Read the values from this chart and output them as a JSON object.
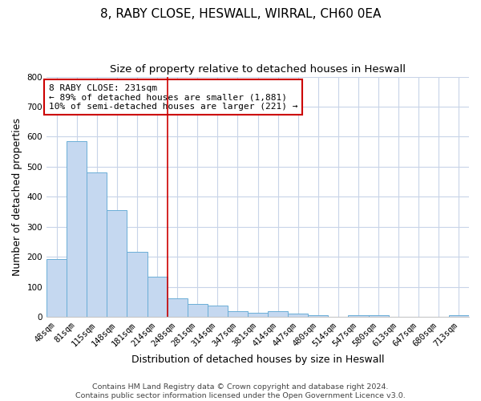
{
  "title": "8, RABY CLOSE, HESWALL, WIRRAL, CH60 0EA",
  "subtitle": "Size of property relative to detached houses in Heswall",
  "xlabel": "Distribution of detached houses by size in Heswall",
  "ylabel": "Number of detached properties",
  "footer_line1": "Contains HM Land Registry data © Crown copyright and database right 2024.",
  "footer_line2": "Contains public sector information licensed under the Open Government Licence v3.0.",
  "bar_labels": [
    "48sqm",
    "81sqm",
    "115sqm",
    "148sqm",
    "181sqm",
    "214sqm",
    "248sqm",
    "281sqm",
    "314sqm",
    "347sqm",
    "381sqm",
    "414sqm",
    "447sqm",
    "480sqm",
    "514sqm",
    "547sqm",
    "580sqm",
    "613sqm",
    "647sqm",
    "680sqm",
    "713sqm"
  ],
  "bar_values": [
    193,
    585,
    480,
    355,
    218,
    135,
    62,
    43,
    37,
    18,
    13,
    18,
    10,
    7,
    0,
    7,
    6,
    0,
    0,
    0,
    5
  ],
  "bar_color": "#c5d8f0",
  "bar_edge_color": "#6baed6",
  "annotation_title": "8 RABY CLOSE: 231sqm",
  "annotation_line2": "← 89% of detached houses are smaller (1,881)",
  "annotation_line3": "10% of semi-detached houses are larger (221) →",
  "vline_x": 5.5,
  "ylim": [
    0,
    800
  ],
  "yticks": [
    0,
    100,
    200,
    300,
    400,
    500,
    600,
    700,
    800
  ],
  "plot_bg_color": "#ffffff",
  "fig_bg_color": "#ffffff",
  "grid_color": "#c8d4e8",
  "annotation_box_color": "#ffffff",
  "annotation_box_edge": "#cc0000",
  "vline_color": "#cc0000",
  "title_fontsize": 11,
  "subtitle_fontsize": 9.5,
  "axis_label_fontsize": 9,
  "tick_fontsize": 7.5,
  "annotation_fontsize": 8,
  "footer_fontsize": 6.8
}
